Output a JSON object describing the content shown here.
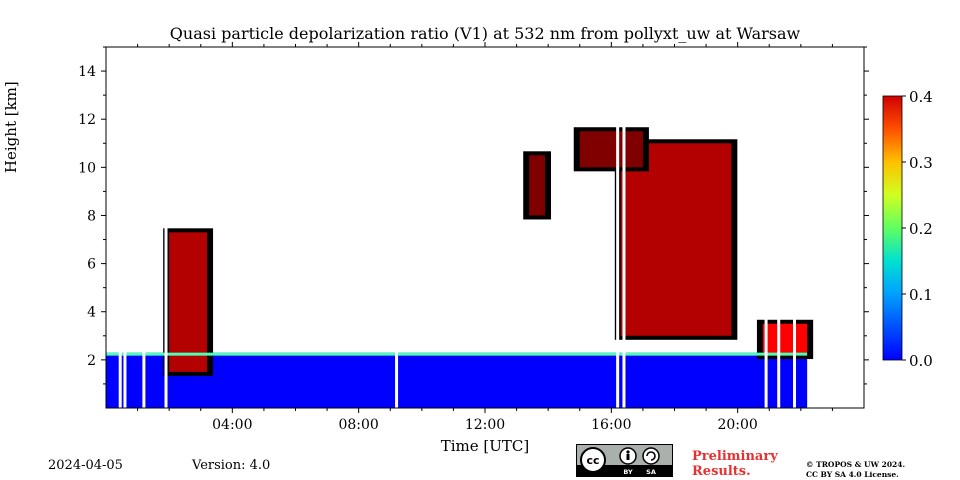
{
  "chart_data": {
    "type": "heatmap",
    "title": "Quasi particle depolarization ratio (V1) at 532 nm from pollyxt_uw at Warsaw",
    "xlabel": "Time [UTC]",
    "ylabel": "Height [km]",
    "xlim_hours": [
      0,
      24
    ],
    "ylim_km": [
      0,
      15
    ],
    "x_ticks": [
      {
        "value": 4,
        "label": "04:00"
      },
      {
        "value": 8,
        "label": "08:00"
      },
      {
        "value": 12,
        "label": "12:00"
      },
      {
        "value": 16,
        "label": "16:00"
      },
      {
        "value": 20,
        "label": "20:00"
      }
    ],
    "y_ticks": [
      {
        "value": 2,
        "label": "2"
      },
      {
        "value": 4,
        "label": "4"
      },
      {
        "value": 6,
        "label": "6"
      },
      {
        "value": 8,
        "label": "8"
      },
      {
        "value": 10,
        "label": "10"
      },
      {
        "value": 12,
        "label": "12"
      },
      {
        "value": 14,
        "label": "14"
      }
    ],
    "colorbar": {
      "min": 0.0,
      "max": 0.4,
      "ticks": [
        {
          "value": 0.0,
          "label": "0.0"
        },
        {
          "value": 0.1,
          "label": "0.1"
        },
        {
          "value": 0.2,
          "label": "0.2"
        },
        {
          "value": 0.3,
          "label": "0.3"
        },
        {
          "value": 0.4,
          "label": "0.4"
        }
      ],
      "colormap": "jet"
    },
    "features": [
      {
        "name": "boundary-layer-aerosol",
        "t0": 0.0,
        "t1": 22.2,
        "h0": 0.0,
        "h1": 2.3,
        "value": 0.05
      },
      {
        "name": "morning-dust-layer",
        "t0": 2.0,
        "t1": 3.2,
        "h0": 1.5,
        "h1": 7.3,
        "value": 0.38
      },
      {
        "name": "afternoon-cirrus",
        "t0": 13.4,
        "t1": 13.9,
        "h0": 8.0,
        "h1": 10.5,
        "value": 0.4
      },
      {
        "name": "evening-cirrus",
        "t0": 16.3,
        "t1": 19.8,
        "h0": 3.0,
        "h1": 11.0,
        "value": 0.38
      },
      {
        "name": "cloud-top-layer",
        "t0": 15.0,
        "t1": 17.0,
        "h0": 10.0,
        "h1": 11.5,
        "value": 0.4
      },
      {
        "name": "late-evening-layer",
        "t0": 20.8,
        "t1": 22.2,
        "h0": 2.2,
        "h1": 3.5,
        "value": 0.35
      }
    ],
    "data_gaps_hours": [
      0.45,
      0.6,
      1.2,
      1.9,
      9.2,
      16.2,
      16.4,
      20.9,
      21.3,
      21.8
    ]
  },
  "footer": {
    "date": "2024-04-05",
    "version": "Version: 4.0",
    "preliminary_line1": "Preliminary",
    "preliminary_line2": "Results.",
    "copyright_line1": "© TROPOS & UW 2024.",
    "copyright_line2": "CC BY SA 4.0 License.",
    "license_badge": {
      "cc": "cc",
      "by": "BY",
      "sa": "SA"
    }
  },
  "colors": {
    "background": "#ffffff",
    "no_data": "#ffffff",
    "masked_cloud": "#000000",
    "preliminary": "#e83030"
  }
}
